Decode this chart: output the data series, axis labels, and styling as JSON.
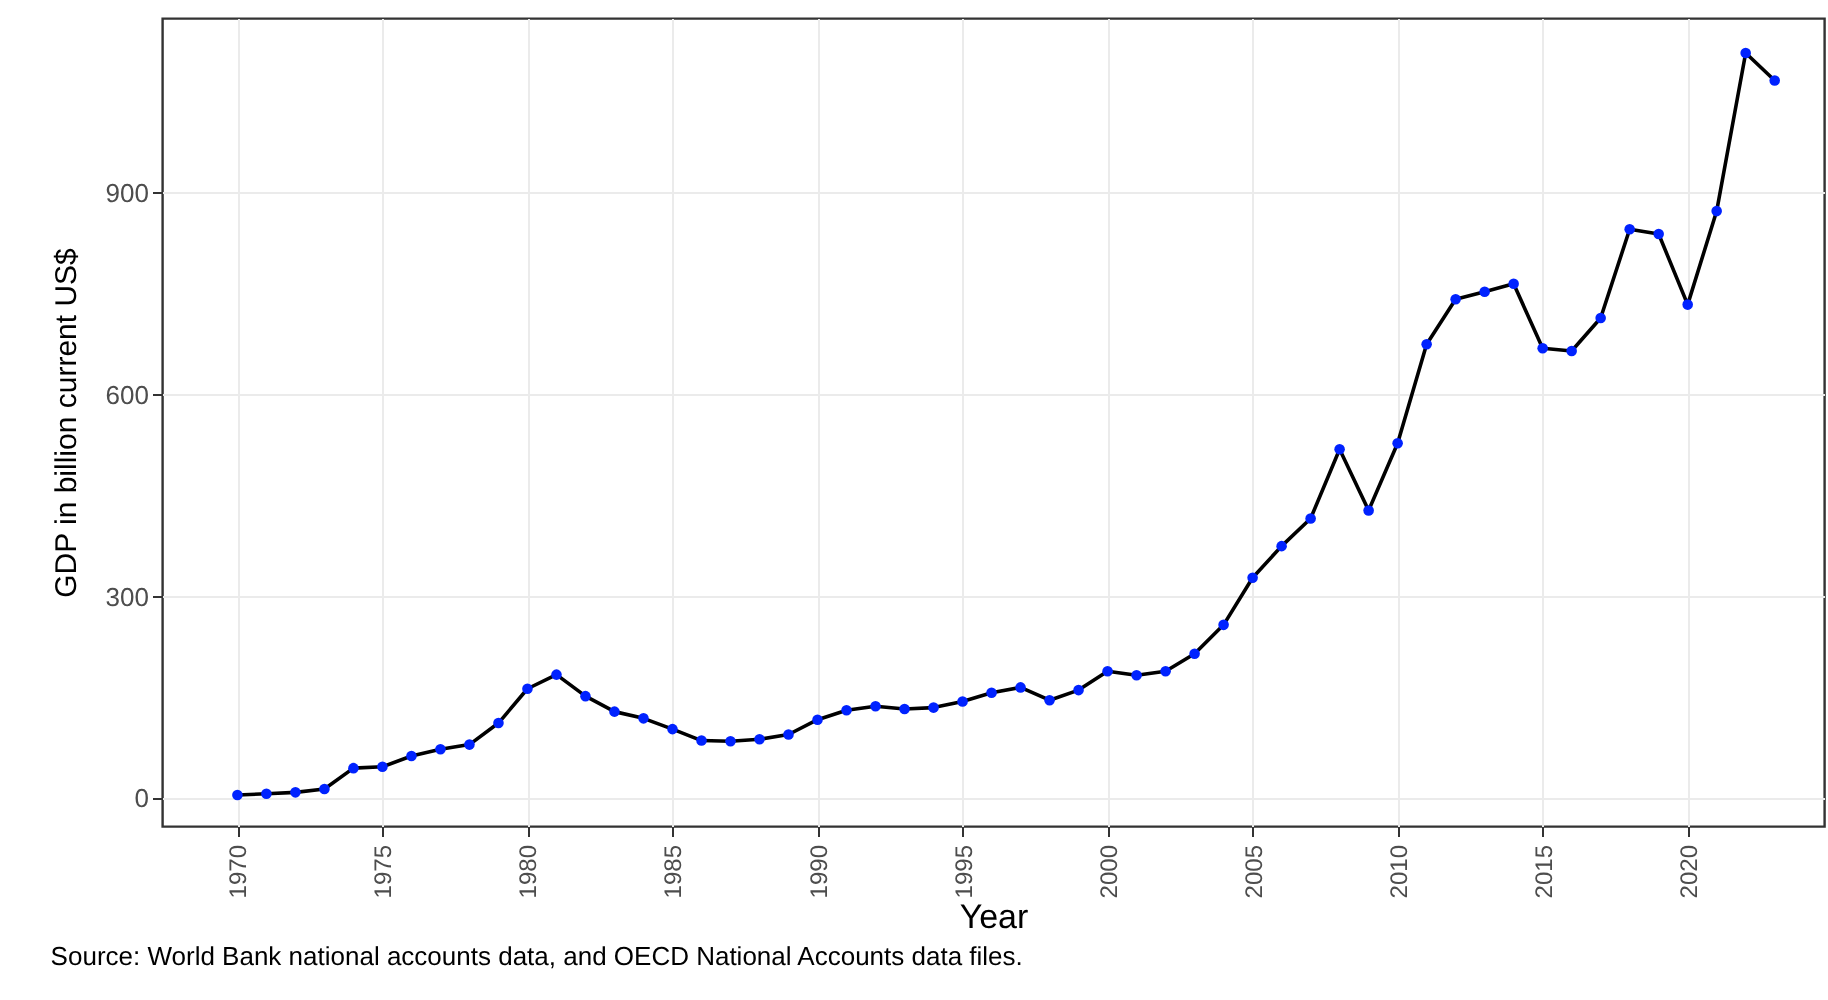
{
  "chart_data": {
    "type": "line",
    "xlabel": "Year",
    "ylabel": "GDP in billion current US$",
    "annotations": [
      "Source: World Bank national accounts data, and OECD National Accounts data files."
    ],
    "x": [
      1970,
      1971,
      1972,
      1973,
      1974,
      1975,
      1976,
      1977,
      1978,
      1979,
      1980,
      1981,
      1982,
      1983,
      1984,
      1985,
      1986,
      1987,
      1988,
      1989,
      1990,
      1991,
      1992,
      1993,
      1994,
      1995,
      1996,
      1997,
      1998,
      1999,
      2000,
      2001,
      2002,
      2003,
      2004,
      2005,
      2006,
      2007,
      2008,
      2009,
      2010,
      2011,
      2012,
      2013,
      2014,
      2015,
      2016,
      2017,
      2018,
      2019,
      2020,
      2021,
      2022,
      2023
    ],
    "series": [
      {
        "color": "#000000",
        "values": [
          5,
          7,
          9,
          14,
          45,
          47,
          63,
          73,
          80,
          112,
          163,
          184,
          152,
          129,
          119,
          103,
          86,
          85,
          88,
          95,
          117,
          131,
          137,
          133,
          135,
          144,
          157,
          165,
          146,
          161,
          189,
          183,
          189,
          215,
          258,
          328,
          375,
          416,
          519,
          428,
          528,
          675,
          742,
          753,
          765,
          669,
          665,
          714,
          846,
          839,
          734,
          873,
          1108,
          1067
        ]
      }
    ],
    "xlim": [
      1967.4,
      2024.7
    ],
    "xticks": [
      1970,
      1975,
      1980,
      1985,
      1990,
      1995,
      2000,
      2005,
      2010,
      2015,
      2020
    ],
    "ylim": [
      -41,
      1160
    ],
    "yticks": [
      0,
      300,
      600,
      900
    ],
    "grid": true,
    "marker": "circle",
    "line_style": "solid"
  }
}
